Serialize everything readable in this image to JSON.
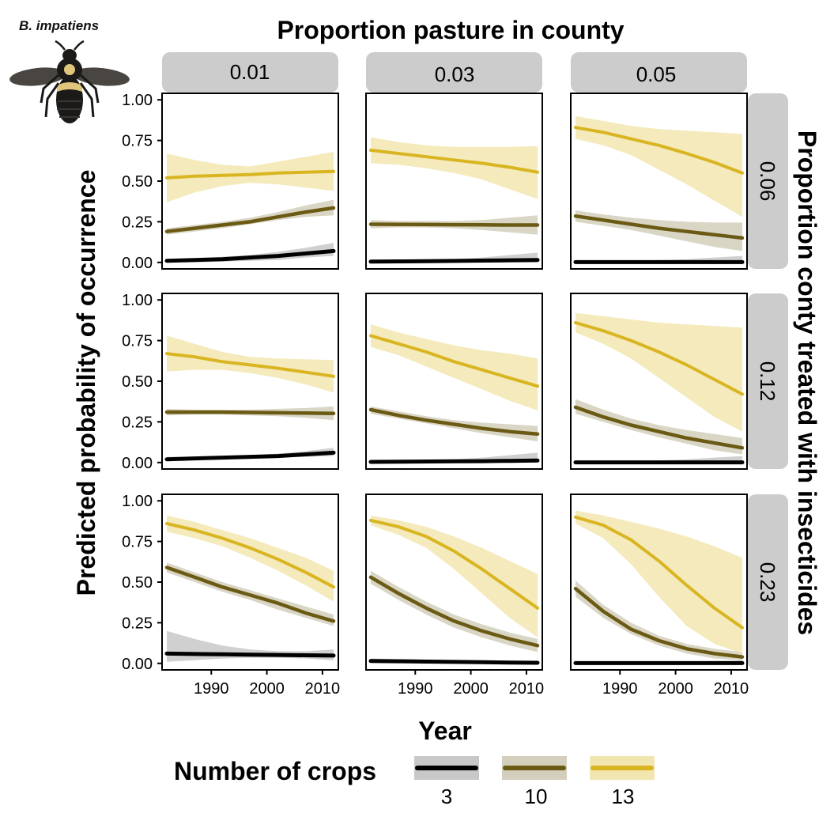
{
  "figure": {
    "species_label": "B. impatiens",
    "top_title": "Proportion pasture in county",
    "right_title": "Proportion conty treated with insecticides",
    "y_title": "Predicted probability of occurrence",
    "x_title": "Year",
    "legend_title": "Number of crops",
    "col_strips": [
      "0.01",
      "0.03",
      "0.05"
    ],
    "row_strips": [
      "0.06",
      "0.12",
      "0.23"
    ],
    "y_tick_labels": [
      "0.00",
      "0.25",
      "0.50",
      "0.75",
      "1.00"
    ],
    "x_tick_labels": [
      "1990",
      "2000",
      "2010"
    ],
    "legend_items": [
      "3",
      "10",
      "13"
    ]
  },
  "colors": {
    "crops_3": "#000000",
    "crops_10": "#6b5a14",
    "crops_13": "#d9b521",
    "ribbon_3": "#c8c8c8",
    "ribbon_10": "#d4cfbc",
    "ribbon_13": "#f2e6b0",
    "strip": "#cccccc"
  },
  "chart_data": {
    "type": "line",
    "x_range": [
      1982,
      2012
    ],
    "ylim": [
      -0.04,
      1.04
    ],
    "x_ticks": [
      1990,
      2000,
      2010
    ],
    "y_ticks": [
      0,
      0.25,
      0.5,
      0.75,
      1.0
    ],
    "x_samples": [
      1982,
      1987,
      1992,
      1997,
      2002,
      2007,
      2012
    ],
    "series_names": [
      "3",
      "10",
      "13"
    ],
    "panels": [
      {
        "row": "0.06",
        "col": "0.01",
        "series": [
          {
            "name": "3",
            "values": [
              0.01,
              0.015,
              0.02,
              0.03,
              0.04,
              0.055,
              0.07
            ],
            "lower": [
              0.0,
              0.0,
              0.005,
              0.01,
              0.015,
              0.03,
              0.04
            ],
            "upper": [
              0.02,
              0.025,
              0.035,
              0.045,
              0.065,
              0.09,
              0.12
            ]
          },
          {
            "name": "10",
            "values": [
              0.19,
              0.21,
              0.23,
              0.25,
              0.28,
              0.31,
              0.335
            ],
            "lower": [
              0.17,
              0.19,
              0.21,
              0.235,
              0.26,
              0.28,
              0.29
            ],
            "upper": [
              0.21,
              0.23,
              0.25,
              0.275,
              0.31,
              0.35,
              0.385
            ]
          },
          {
            "name": "13",
            "values": [
              0.52,
              0.53,
              0.535,
              0.54,
              0.55,
              0.555,
              0.56
            ],
            "lower": [
              0.37,
              0.43,
              0.47,
              0.49,
              0.48,
              0.46,
              0.44
            ],
            "upper": [
              0.67,
              0.63,
              0.6,
              0.59,
              0.62,
              0.65,
              0.68
            ]
          }
        ]
      },
      {
        "row": "0.06",
        "col": "0.03",
        "series": [
          {
            "name": "3",
            "values": [
              0.005,
              0.006,
              0.007,
              0.009,
              0.011,
              0.013,
              0.015
            ],
            "lower": [
              0,
              0,
              0,
              0,
              0,
              0,
              0
            ],
            "upper": [
              0.01,
              0.012,
              0.015,
              0.02,
              0.03,
              0.045,
              0.06
            ]
          },
          {
            "name": "10",
            "values": [
              0.235,
              0.234,
              0.233,
              0.232,
              0.231,
              0.23,
              0.23
            ],
            "lower": [
              0.21,
              0.215,
              0.215,
              0.21,
              0.2,
              0.185,
              0.17
            ],
            "upper": [
              0.26,
              0.255,
              0.255,
              0.255,
              0.26,
              0.275,
              0.29
            ]
          },
          {
            "name": "13",
            "values": [
              0.69,
              0.67,
              0.65,
              0.63,
              0.61,
              0.585,
              0.555
            ],
            "lower": [
              0.61,
              0.6,
              0.58,
              0.55,
              0.51,
              0.45,
              0.39
            ],
            "upper": [
              0.77,
              0.74,
              0.72,
              0.71,
              0.71,
              0.71,
              0.715
            ]
          }
        ]
      },
      {
        "row": "0.06",
        "col": "0.05",
        "series": [
          {
            "name": "3",
            "values": [
              0.002,
              0.002,
              0.002,
              0.002,
              0.002,
              0.002,
              0.002
            ],
            "lower": [
              0,
              0,
              0,
              0,
              0,
              0,
              0
            ],
            "upper": [
              0.005,
              0.007,
              0.01,
              0.014,
              0.02,
              0.03,
              0.04
            ]
          },
          {
            "name": "10",
            "values": [
              0.285,
              0.26,
              0.235,
              0.21,
              0.19,
              0.17,
              0.15
            ],
            "lower": [
              0.25,
              0.225,
              0.2,
              0.165,
              0.13,
              0.095,
              0.07
            ],
            "upper": [
              0.32,
              0.295,
              0.275,
              0.26,
              0.25,
              0.245,
              0.245
            ]
          },
          {
            "name": "13",
            "values": [
              0.83,
              0.8,
              0.76,
              0.72,
              0.67,
              0.615,
              0.55
            ],
            "lower": [
              0.76,
              0.72,
              0.66,
              0.57,
              0.48,
              0.38,
              0.28
            ],
            "upper": [
              0.9,
              0.87,
              0.84,
              0.82,
              0.81,
              0.8,
              0.79
            ]
          }
        ]
      },
      {
        "row": "0.12",
        "col": "0.01",
        "series": [
          {
            "name": "3",
            "values": [
              0.02,
              0.025,
              0.03,
              0.035,
              0.04,
              0.05,
              0.06
            ],
            "lower": [
              0.01,
              0.015,
              0.02,
              0.025,
              0.03,
              0.035,
              0.04
            ],
            "upper": [
              0.035,
              0.035,
              0.04,
              0.045,
              0.055,
              0.07,
              0.09
            ]
          },
          {
            "name": "10",
            "values": [
              0.31,
              0.31,
              0.31,
              0.308,
              0.306,
              0.304,
              0.302
            ],
            "lower": [
              0.29,
              0.295,
              0.295,
              0.29,
              0.285,
              0.275,
              0.26
            ],
            "upper": [
              0.33,
              0.325,
              0.325,
              0.325,
              0.33,
              0.335,
              0.345
            ]
          },
          {
            "name": "13",
            "values": [
              0.67,
              0.65,
              0.62,
              0.6,
              0.58,
              0.555,
              0.53
            ],
            "lower": [
              0.56,
              0.57,
              0.57,
              0.55,
              0.52,
              0.48,
              0.43
            ],
            "upper": [
              0.78,
              0.73,
              0.68,
              0.65,
              0.64,
              0.635,
              0.63
            ]
          }
        ]
      },
      {
        "row": "0.12",
        "col": "0.03",
        "series": [
          {
            "name": "3",
            "values": [
              0.004,
              0.005,
              0.006,
              0.007,
              0.008,
              0.01,
              0.012
            ],
            "lower": [
              0,
              0,
              0,
              0,
              0,
              0,
              0
            ],
            "upper": [
              0.01,
              0.012,
              0.015,
              0.02,
              0.03,
              0.045,
              0.06
            ]
          },
          {
            "name": "10",
            "values": [
              0.325,
              0.29,
              0.26,
              0.235,
              0.21,
              0.19,
              0.175
            ],
            "lower": [
              0.3,
              0.27,
              0.24,
              0.21,
              0.18,
              0.155,
              0.13
            ],
            "upper": [
              0.345,
              0.315,
              0.285,
              0.26,
              0.245,
              0.235,
              0.225
            ]
          },
          {
            "name": "13",
            "values": [
              0.78,
              0.73,
              0.68,
              0.62,
              0.57,
              0.52,
              0.47
            ],
            "lower": [
              0.71,
              0.66,
              0.59,
              0.52,
              0.45,
              0.38,
              0.32
            ],
            "upper": [
              0.85,
              0.8,
              0.76,
              0.72,
              0.69,
              0.67,
              0.64
            ]
          }
        ]
      },
      {
        "row": "0.12",
        "col": "0.05",
        "series": [
          {
            "name": "3",
            "values": [
              0.001,
              0.001,
              0.001,
              0.001,
              0.001,
              0.001,
              0.001
            ],
            "lower": [
              0,
              0,
              0,
              0,
              0,
              0,
              0
            ],
            "upper": [
              0.004,
              0.006,
              0.008,
              0.012,
              0.02,
              0.03,
              0.04
            ]
          },
          {
            "name": "10",
            "values": [
              0.34,
              0.28,
              0.23,
              0.19,
              0.15,
              0.12,
              0.09
            ],
            "lower": [
              0.3,
              0.25,
              0.2,
              0.155,
              0.115,
              0.075,
              0.05
            ],
            "upper": [
              0.39,
              0.325,
              0.27,
              0.23,
              0.2,
              0.175,
              0.15
            ]
          },
          {
            "name": "13",
            "values": [
              0.86,
              0.81,
              0.75,
              0.68,
              0.6,
              0.51,
              0.42
            ],
            "lower": [
              0.8,
              0.73,
              0.64,
              0.52,
              0.4,
              0.28,
              0.19
            ],
            "upper": [
              0.92,
              0.9,
              0.88,
              0.86,
              0.85,
              0.84,
              0.83
            ]
          }
        ]
      },
      {
        "row": "0.23",
        "col": "0.01",
        "series": [
          {
            "name": "3",
            "values": [
              0.06,
              0.058,
              0.056,
              0.054,
              0.052,
              0.05,
              0.048
            ],
            "lower": [
              0.01,
              0.02,
              0.03,
              0.035,
              0.035,
              0.03,
              0.02
            ],
            "upper": [
              0.2,
              0.15,
              0.11,
              0.085,
              0.075,
              0.075,
              0.085
            ]
          },
          {
            "name": "10",
            "values": [
              0.59,
              0.53,
              0.47,
              0.42,
              0.37,
              0.31,
              0.26
            ],
            "lower": [
              0.56,
              0.5,
              0.44,
              0.39,
              0.33,
              0.28,
              0.23
            ],
            "upper": [
              0.62,
              0.56,
              0.5,
              0.45,
              0.4,
              0.35,
              0.3
            ]
          },
          {
            "name": "13",
            "values": [
              0.86,
              0.82,
              0.77,
              0.71,
              0.64,
              0.56,
              0.47
            ],
            "lower": [
              0.81,
              0.77,
              0.72,
              0.65,
              0.57,
              0.48,
              0.38
            ],
            "upper": [
              0.91,
              0.87,
              0.82,
              0.77,
              0.71,
              0.65,
              0.57
            ]
          }
        ]
      },
      {
        "row": "0.23",
        "col": "0.03",
        "series": [
          {
            "name": "3",
            "values": [
              0.015,
              0.013,
              0.011,
              0.009,
              0.007,
              0.005,
              0.004
            ],
            "lower": [
              0.005,
              0.004,
              0.003,
              0.002,
              0.001,
              0.0,
              0.0
            ],
            "upper": [
              0.03,
              0.027,
              0.023,
              0.02,
              0.018,
              0.015,
              0.013
            ]
          },
          {
            "name": "10",
            "values": [
              0.53,
              0.43,
              0.34,
              0.26,
              0.2,
              0.15,
              0.11
            ],
            "lower": [
              0.49,
              0.39,
              0.3,
              0.22,
              0.16,
              0.11,
              0.07
            ],
            "upper": [
              0.57,
              0.47,
              0.38,
              0.3,
              0.24,
              0.19,
              0.15
            ]
          },
          {
            "name": "13",
            "values": [
              0.88,
              0.84,
              0.78,
              0.69,
              0.58,
              0.46,
              0.34
            ],
            "lower": [
              0.85,
              0.79,
              0.71,
              0.58,
              0.43,
              0.28,
              0.16
            ],
            "upper": [
              0.91,
              0.88,
              0.84,
              0.78,
              0.71,
              0.63,
              0.55
            ]
          }
        ]
      },
      {
        "row": "0.23",
        "col": "0.05",
        "series": [
          {
            "name": "3",
            "values": [
              0.002,
              0.002,
              0.002,
              0.002,
              0.002,
              0.002,
              0.002
            ],
            "lower": [
              0,
              0,
              0,
              0,
              0,
              0,
              0
            ],
            "upper": [
              0.005,
              0.006,
              0.008,
              0.01,
              0.012,
              0.015,
              0.018
            ]
          },
          {
            "name": "10",
            "values": [
              0.46,
              0.32,
              0.21,
              0.14,
              0.09,
              0.06,
              0.04
            ],
            "lower": [
              0.41,
              0.28,
              0.18,
              0.11,
              0.06,
              0.03,
              0.02
            ],
            "upper": [
              0.51,
              0.36,
              0.25,
              0.17,
              0.12,
              0.09,
              0.07
            ]
          },
          {
            "name": "13",
            "values": [
              0.9,
              0.85,
              0.76,
              0.63,
              0.48,
              0.34,
              0.22
            ],
            "lower": [
              0.86,
              0.77,
              0.61,
              0.41,
              0.23,
              0.12,
              0.06
            ],
            "upper": [
              0.94,
              0.91,
              0.87,
              0.83,
              0.78,
              0.72,
              0.65
            ]
          }
        ]
      }
    ]
  }
}
